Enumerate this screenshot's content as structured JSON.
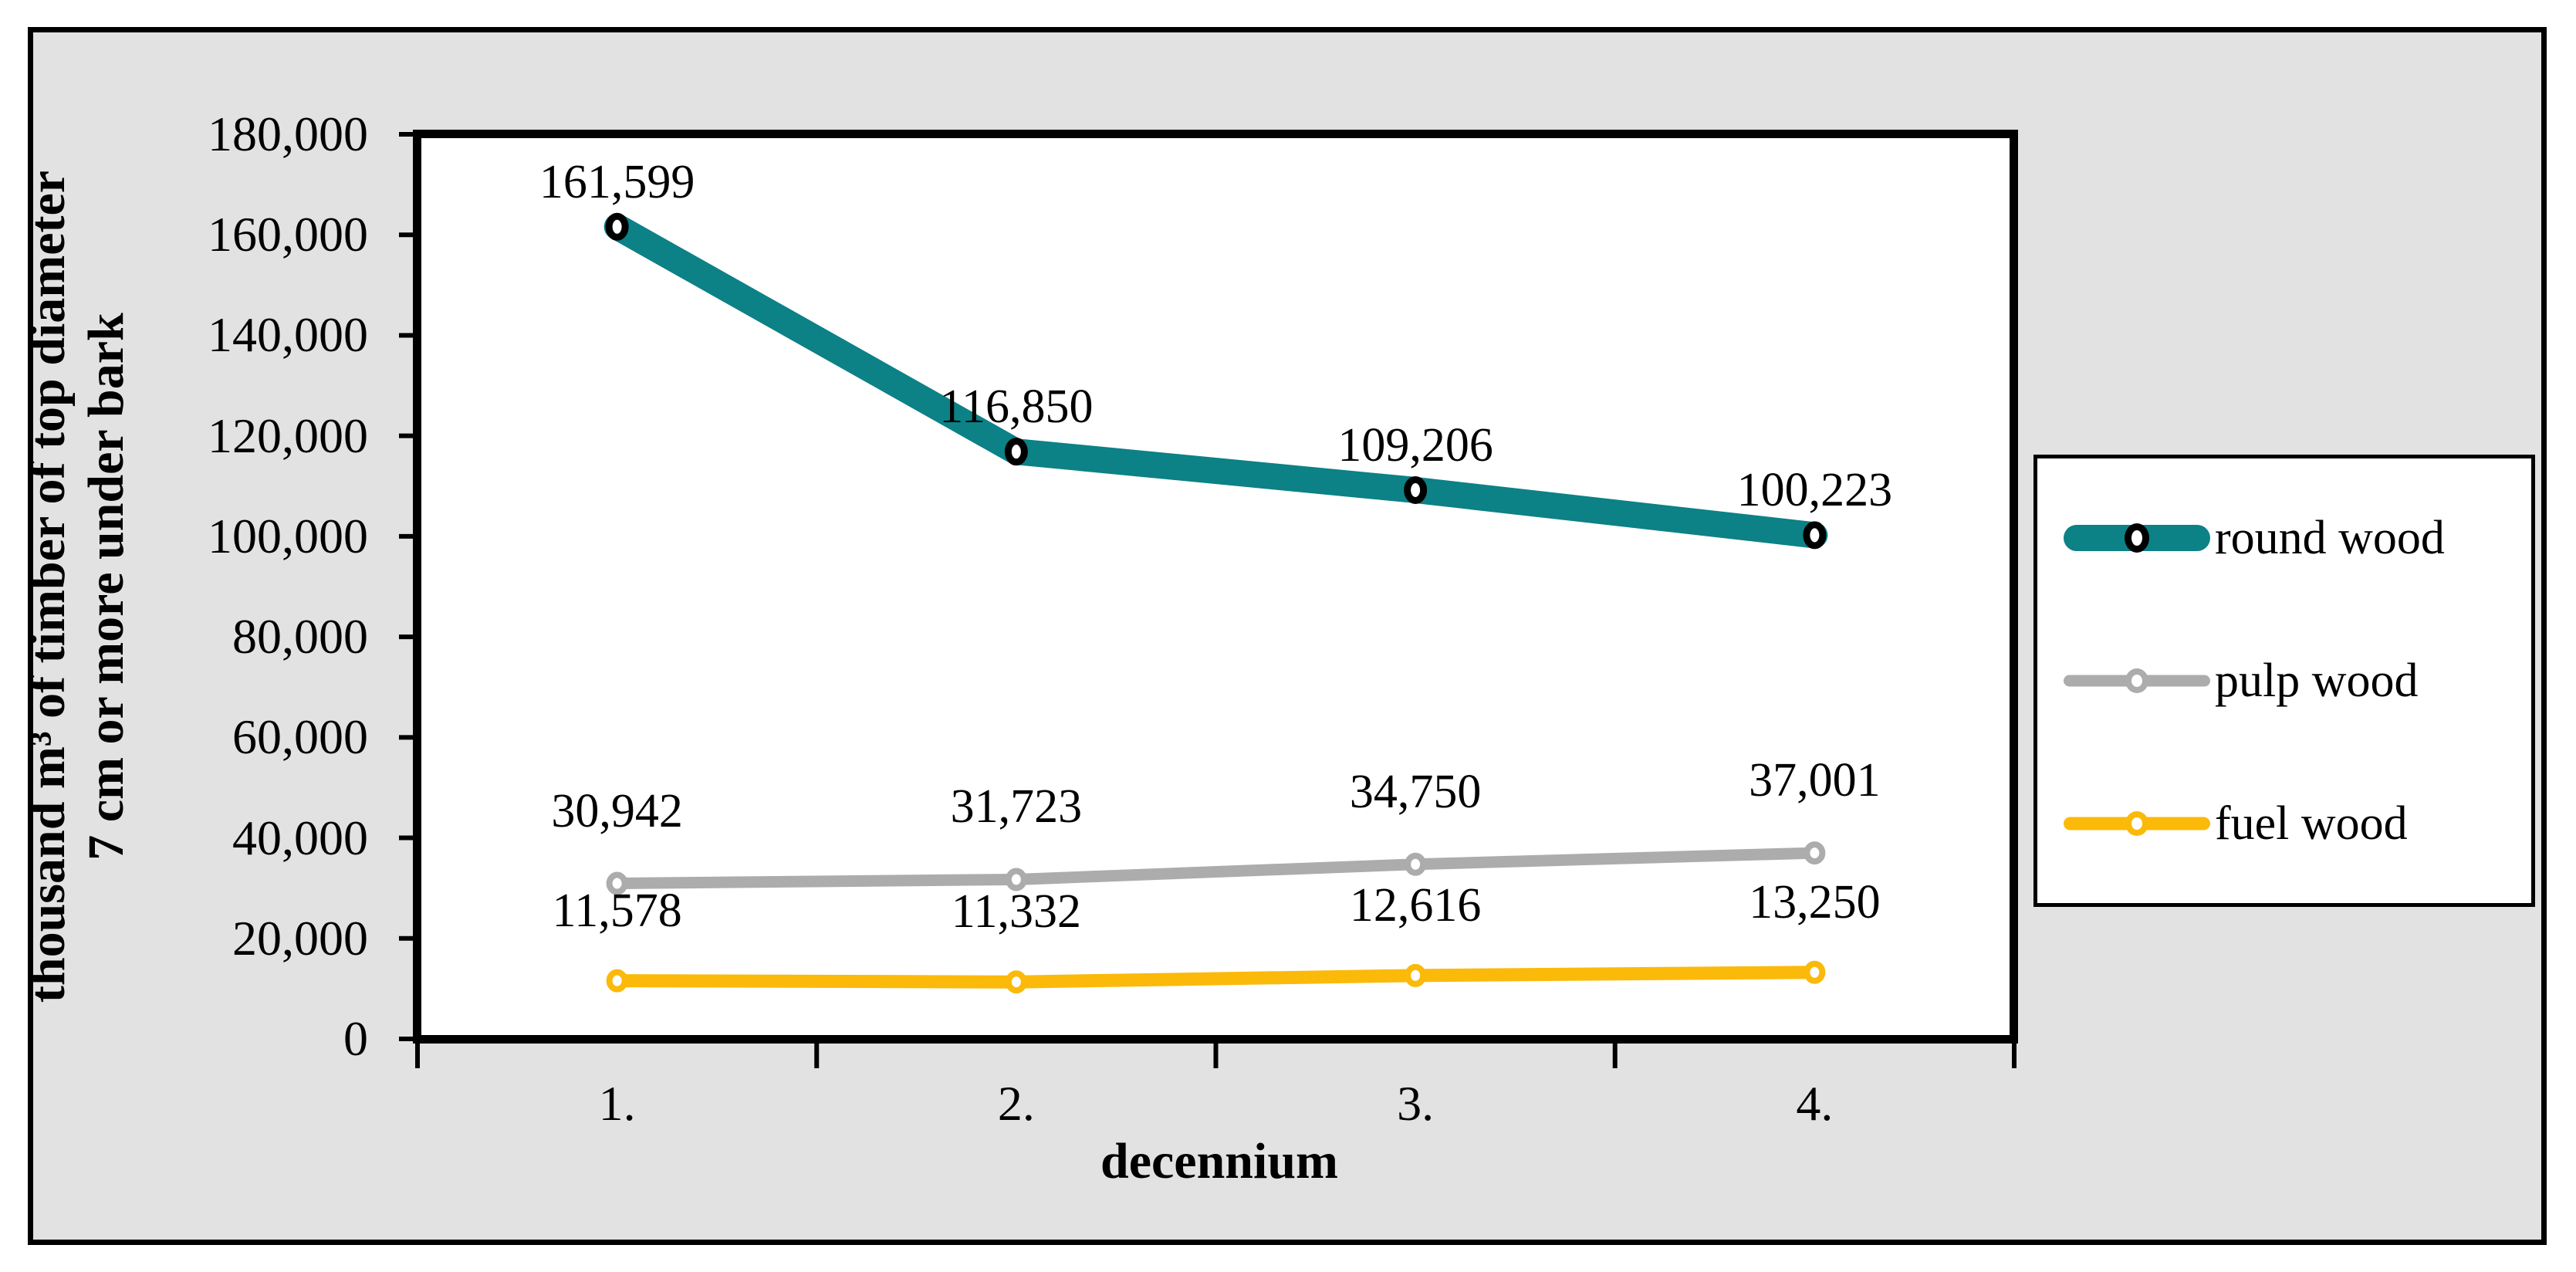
{
  "chart_data": {
    "type": "line",
    "categories": [
      "1.",
      "2.",
      "3.",
      "4."
    ],
    "series": [
      {
        "name": "round wood",
        "color": "#0C8186",
        "values": [
          161599,
          116850,
          109206,
          100223
        ],
        "labels": [
          "161,599",
          "116,850",
          "109,206",
          "100,223"
        ]
      },
      {
        "name": "pulp wood",
        "color": "#ACACAC",
        "values": [
          30942,
          31723,
          34750,
          37001
        ],
        "labels": [
          "30,942",
          "31,723",
          "34,750",
          "37,001"
        ]
      },
      {
        "name": "fuel wood",
        "color": "#FBB90A",
        "values": [
          11578,
          11332,
          12616,
          13250
        ],
        "labels": [
          "11,578",
          "11,332",
          "12,616",
          "13,250"
        ]
      }
    ],
    "xlabel": "decennium",
    "ylabel_line1": "thousand m³ of timber of top diameter",
    "ylabel_line2": "7 cm or more under bark",
    "ylim": [
      0,
      180000
    ],
    "ytick_step": 20000,
    "ytick_labels": [
      "0",
      "20,000",
      "40,000",
      "60,000",
      "80,000",
      "100,000",
      "120,000",
      "140,000",
      "160,000",
      "180,000"
    ],
    "legend_position": "right",
    "grid": false,
    "marker_fill": "#ffffff",
    "round_marker_ring": "#000000"
  },
  "colors": {
    "chart_background": "#e2e2e2",
    "plot_background": "#ffffff",
    "frame_border": "#000000",
    "text": "#000000"
  }
}
